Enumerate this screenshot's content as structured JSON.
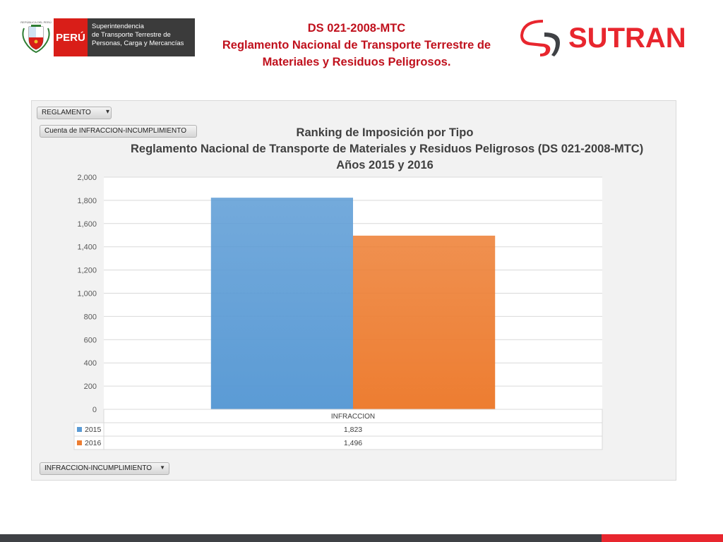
{
  "header": {
    "peru_label": "PERÚ",
    "republic_label": "REPÚBLICA DEL PERÚ",
    "institution_lines": [
      "Superintendencia",
      "de Transporte Terrestre de",
      "Personas, Carga y Mercancías"
    ],
    "title_lines": [
      "DS 021-2008-MTC",
      "Reglamento Nacional de Transporte Terrestre de",
      "Materiales y Residuos Peligrosos."
    ],
    "brand": "SUTRAN"
  },
  "pivot_controls": {
    "filter_field": "REGLAMENTO",
    "value_field": "Cuenta de INFRACCION-INCUMPLIMIENTO",
    "axis_field": "INFRACCION-INCUMPLIMIENTO"
  },
  "chart_data": {
    "type": "bar",
    "title_lines": [
      "Ranking de Imposición por Tipo",
      "Reglamento Nacional de Transporte de Materiales y Residuos Peligrosos (DS 021-2008-MTC)",
      "Años 2015 y 2016"
    ],
    "categories": [
      "INFRACCION"
    ],
    "series": [
      {
        "name": "2015",
        "values": [
          1823
        ],
        "display_values": [
          "1,823"
        ],
        "color": "#5b9bd5"
      },
      {
        "name": "2016",
        "values": [
          1496
        ],
        "display_values": [
          "1,496"
        ],
        "color": "#ed7d31"
      }
    ],
    "ylim": [
      0,
      2000
    ],
    "yticks": [
      0,
      200,
      400,
      600,
      800,
      1000,
      1200,
      1400,
      1600,
      1800,
      2000
    ],
    "ytick_labels": [
      "0",
      "200",
      "400",
      "600",
      "800",
      "1,000",
      "1,200",
      "1,400",
      "1,600",
      "1,800",
      "2,000"
    ],
    "grid": true,
    "legend": "data-table"
  },
  "colors": {
    "brand_red": "#e8262e",
    "title_red": "#c0111d",
    "bar_2015": "#5b9bd5",
    "bar_2016": "#ed7d31"
  }
}
